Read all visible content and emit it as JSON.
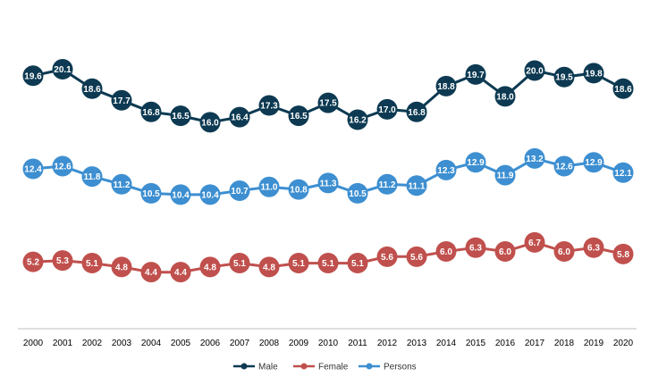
{
  "chart_data": {
    "type": "line",
    "x": [
      "2000",
      "2001",
      "2002",
      "2003",
      "2004",
      "2005",
      "2006",
      "2007",
      "2008",
      "2009",
      "2010",
      "2011",
      "2012",
      "2013",
      "2014",
      "2015",
      "2016",
      "2017",
      "2018",
      "2019",
      "2020"
    ],
    "series": [
      {
        "name": "Male",
        "color": "#0d3a52",
        "values": [
          19.6,
          20.1,
          18.6,
          17.7,
          16.8,
          16.5,
          16.0,
          16.4,
          17.3,
          16.5,
          17.5,
          16.2,
          17.0,
          16.8,
          18.8,
          19.7,
          18.0,
          20.0,
          19.5,
          19.8,
          18.6
        ]
      },
      {
        "name": "Female",
        "color": "#c0504d",
        "values": [
          5.2,
          5.3,
          5.1,
          4.8,
          4.4,
          4.4,
          4.8,
          5.1,
          4.8,
          5.1,
          5.1,
          5.1,
          5.6,
          5.6,
          6.0,
          6.3,
          6.0,
          6.7,
          6.0,
          6.3,
          5.8
        ]
      },
      {
        "name": "Persons",
        "color": "#3d8fd1",
        "values": [
          12.4,
          12.6,
          11.8,
          11.2,
          10.5,
          10.4,
          10.4,
          10.7,
          11.0,
          10.8,
          11.3,
          10.5,
          11.2,
          11.1,
          12.3,
          12.9,
          11.9,
          13.2,
          12.6,
          12.9,
          12.1
        ]
      }
    ],
    "title": "",
    "xlabel": "",
    "ylabel": "",
    "grid": false,
    "legend_position": "bottom",
    "data_labels": true,
    "axis_line_color": "#bfbfbf"
  }
}
